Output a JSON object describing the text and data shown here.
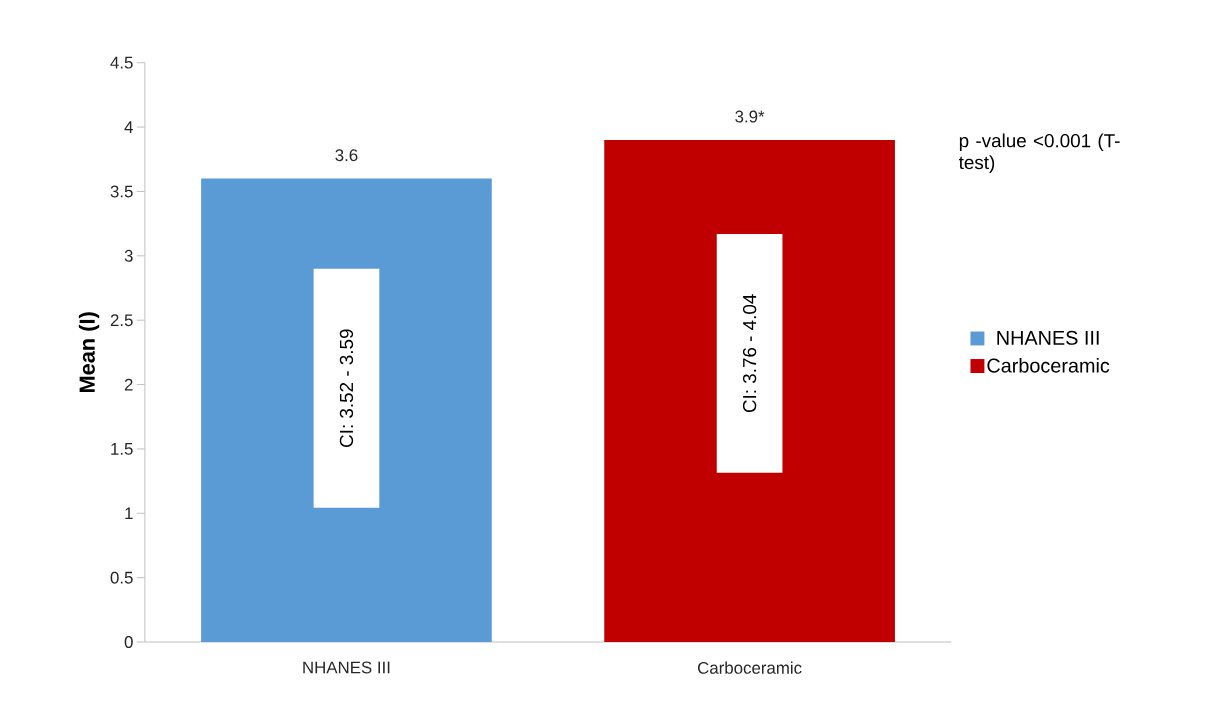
{
  "chart_data": {
    "type": "bar",
    "ylabel": "Mean (I)",
    "categories": [
      "NHANES III",
      "Carboceramic"
    ],
    "series": [
      {
        "name": "NHANES III",
        "color": "#5b9bd5",
        "values": [
          3.6,
          null
        ],
        "value_labels": [
          "3.6",
          null
        ]
      },
      {
        "name": "Carboceramic",
        "color": "#c00000",
        "values": [
          null,
          3.9
        ],
        "value_labels": [
          null,
          "3.9*"
        ]
      }
    ],
    "ylim": [
      0,
      4.5
    ],
    "yticks": [
      0,
      0.5,
      1,
      1.5,
      2,
      2.5,
      3,
      3.5,
      4,
      4.5
    ],
    "grid": false,
    "legend": "right",
    "annotations": [
      "CI: 3.52 - 3.59",
      "CI: 3.76 - 4.04",
      "p -value <0.001 (T-test)"
    ]
  }
}
